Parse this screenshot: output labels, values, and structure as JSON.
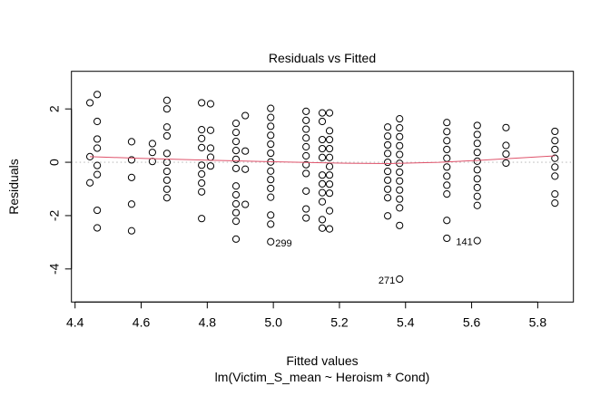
{
  "chart_data": {
    "type": "scatter",
    "title": "Residuals vs Fitted",
    "xlabel": "Fitted values",
    "sublabel": "lm(Victim_S_mean ~ Heroism * Cond)",
    "ylabel": "Residuals",
    "xlim": [
      4.389,
      5.908
    ],
    "ylim": [
      -5.24,
      3.41
    ],
    "xticks": [
      4.4,
      4.6,
      4.8,
      5.0,
      5.2,
      5.4,
      5.6,
      5.8
    ],
    "xtick_labels": [
      "4.4",
      "4.6",
      "4.8",
      "5.0",
      "5.2",
      "5.4",
      "5.6",
      "5.8"
    ],
    "yticks": [
      2,
      0,
      -2,
      -4
    ],
    "ytick_labels": [
      "2",
      "0",
      "-2",
      "-4"
    ],
    "grid": false,
    "reference_line": 0,
    "colors": {
      "points": "#000000",
      "smoother": "#DF536B",
      "reference": "#BEBEBE"
    },
    "columns": [
      {
        "x": 4.445,
        "y": [
          2.23,
          0.21,
          -0.77
        ]
      },
      {
        "x": 4.467,
        "y": [
          2.54,
          1.53,
          0.87,
          0.53,
          -0.12,
          -0.46,
          -1.8,
          -2.46
        ]
      },
      {
        "x": 4.571,
        "y": [
          0.77,
          0.09,
          -0.57,
          -1.57,
          -2.57
        ]
      },
      {
        "x": 4.634,
        "y": [
          0.7,
          0.37,
          0.03
        ]
      },
      {
        "x": 4.678,
        "y": [
          2.32,
          2.0,
          1.32,
          0.99,
          0.33,
          0.0,
          -0.34,
          -0.67,
          -1.01,
          -1.33
        ]
      },
      {
        "x": 4.783,
        "y": [
          2.23,
          1.22,
          0.89,
          0.55,
          -0.11,
          -0.44,
          -0.78,
          -1.11,
          -2.11
        ]
      },
      {
        "x": 4.81,
        "y": [
          2.19,
          1.2,
          0.53,
          0.19,
          -0.14
        ]
      },
      {
        "x": 4.887,
        "y": [
          1.46,
          1.12,
          0.78,
          0.44,
          0.11,
          -0.23,
          -0.89,
          -1.22,
          -1.56,
          -1.89,
          -2.21,
          -2.88
        ]
      },
      {
        "x": 4.915,
        "y": [
          1.75,
          0.42,
          -0.26,
          -1.58
        ]
      },
      {
        "x": 4.992,
        "y": [
          2.02,
          1.68,
          1.35,
          1.01,
          0.68,
          0.34,
          0.01,
          -0.33,
          -0.65,
          -0.98,
          -1.31,
          -1.98,
          -2.32,
          -2.98
        ]
      },
      {
        "x": 5.099,
        "y": [
          1.91,
          1.57,
          1.24,
          0.91,
          0.58,
          0.24,
          -0.09,
          -0.42,
          -1.08,
          -1.75,
          -2.09
        ]
      },
      {
        "x": 5.148,
        "y": [
          1.85,
          1.53,
          0.85,
          0.51,
          0.18,
          -0.48,
          -0.81,
          -1.14,
          -1.48,
          -2.15,
          -2.47
        ]
      },
      {
        "x": 5.17,
        "y": [
          1.85,
          1.18,
          0.85,
          0.51,
          0.18,
          -0.16,
          -0.48,
          -0.82,
          -1.16,
          -1.82,
          -2.5
        ]
      },
      {
        "x": 5.346,
        "y": [
          1.32,
          0.98,
          0.65,
          0.33,
          0.0,
          -0.34,
          -0.67,
          -1.01,
          -1.33,
          -2.01
        ]
      },
      {
        "x": 5.382,
        "y": [
          1.63,
          1.29,
          0.96,
          0.62,
          0.29,
          -0.04,
          -0.37,
          -0.7,
          -1.04,
          -1.38,
          -1.71,
          -2.37,
          -4.38
        ]
      },
      {
        "x": 5.525,
        "y": [
          1.49,
          1.15,
          0.81,
          0.48,
          0.15,
          -0.18,
          -0.52,
          -0.86,
          -1.19,
          -2.18,
          -2.85
        ]
      },
      {
        "x": 5.617,
        "y": [
          1.38,
          1.04,
          0.71,
          0.37,
          0.04,
          -0.28,
          -0.62,
          -0.95,
          -1.28,
          -1.62,
          -2.94
        ]
      },
      {
        "x": 5.704,
        "y": [
          1.3,
          0.63,
          0.31,
          -0.03
        ]
      },
      {
        "x": 5.852,
        "y": [
          1.16,
          0.81,
          0.48,
          0.15,
          -0.18,
          -0.52,
          -1.19,
          -1.53
        ]
      }
    ],
    "smoother": [
      {
        "x": 4.445,
        "y": 0.21
      },
      {
        "x": 4.6,
        "y": 0.15
      },
      {
        "x": 4.8,
        "y": 0.08
      },
      {
        "x": 5.0,
        "y": 0.02
      },
      {
        "x": 5.2,
        "y": -0.03
      },
      {
        "x": 5.35,
        "y": -0.05
      },
      {
        "x": 5.5,
        "y": 0.0
      },
      {
        "x": 5.62,
        "y": 0.07
      },
      {
        "x": 5.7,
        "y": 0.13
      },
      {
        "x": 5.852,
        "y": 0.24
      }
    ],
    "annotations": [
      {
        "label": "299",
        "x": 4.992,
        "y": -2.98,
        "side": "right"
      },
      {
        "label": "271",
        "x": 5.382,
        "y": -4.38,
        "side": "left"
      },
      {
        "label": "141",
        "x": 5.617,
        "y": -2.94,
        "side": "left"
      }
    ]
  }
}
